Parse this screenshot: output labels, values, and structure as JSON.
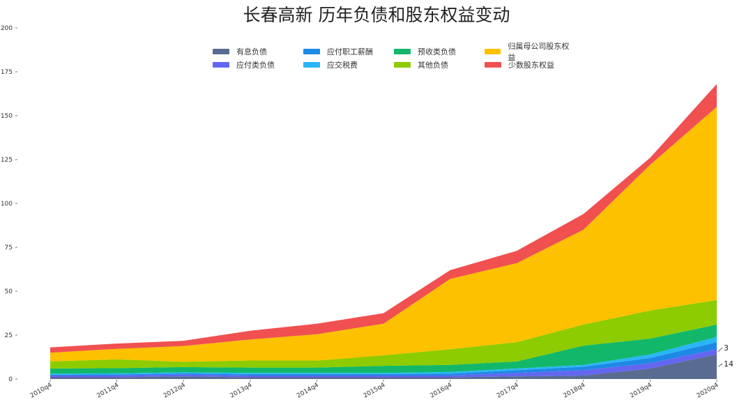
{
  "chart_data": {
    "type": "area",
    "title": "长春高新 历年负债和股东权益变动",
    "x": [
      "2010q4",
      "2011q4",
      "2012q4",
      "2013q4",
      "2014q4",
      "2015q4",
      "2016q4",
      "2017q4",
      "2018q4",
      "2019q4",
      "2020q4"
    ],
    "ylim": [
      0,
      200
    ],
    "yticks": [
      0,
      25,
      50,
      75,
      100,
      125,
      150,
      175,
      200
    ],
    "stacked": true,
    "legend_position": "top-center",
    "grid": false,
    "series": [
      {
        "name": "有息负债",
        "color": "#5a6b92",
        "values": [
          1,
          1,
          1.5,
          1,
          1,
          1,
          1,
          1.5,
          2,
          6,
          14
        ]
      },
      {
        "name": "应付类负债",
        "color": "#6366f1",
        "values": [
          1,
          1,
          1,
          1,
          1,
          1,
          1,
          2,
          3,
          3,
          3
        ]
      },
      {
        "name": "应付职工薪酬",
        "color": "#1e88e5",
        "values": [
          0.5,
          0.6,
          0.7,
          0.8,
          0.8,
          0.8,
          1,
          1.5,
          2,
          3,
          4
        ]
      },
      {
        "name": "应交税费",
        "color": "#29b6f6",
        "values": [
          0.5,
          0.6,
          0.6,
          0.7,
          0.7,
          0.7,
          1,
          1,
          1,
          2,
          3
        ]
      },
      {
        "name": "预收类负债",
        "color": "#12b76a",
        "values": [
          3,
          3,
          3,
          3,
          3,
          4,
          4,
          4,
          11,
          9,
          7
        ]
      },
      {
        "name": "其他负债",
        "color": "#8ccc00",
        "values": [
          4,
          5,
          3,
          4,
          4,
          6,
          9,
          11,
          12,
          16,
          14
        ]
      },
      {
        "name": "归属母公司股东权益",
        "color": "#fdc100",
        "values": [
          5,
          6,
          9,
          12,
          15,
          18,
          40,
          45,
          54,
          83,
          110
        ]
      },
      {
        "name": "少数股东权益",
        "color": "#f05050",
        "values": [
          3,
          3,
          3,
          5,
          6,
          6,
          5,
          7,
          9,
          4,
          13
        ]
      }
    ],
    "end_labels": [
      {
        "text": "3",
        "series": "应付类负债"
      },
      {
        "text": "14",
        "series": "有息负债"
      }
    ]
  }
}
